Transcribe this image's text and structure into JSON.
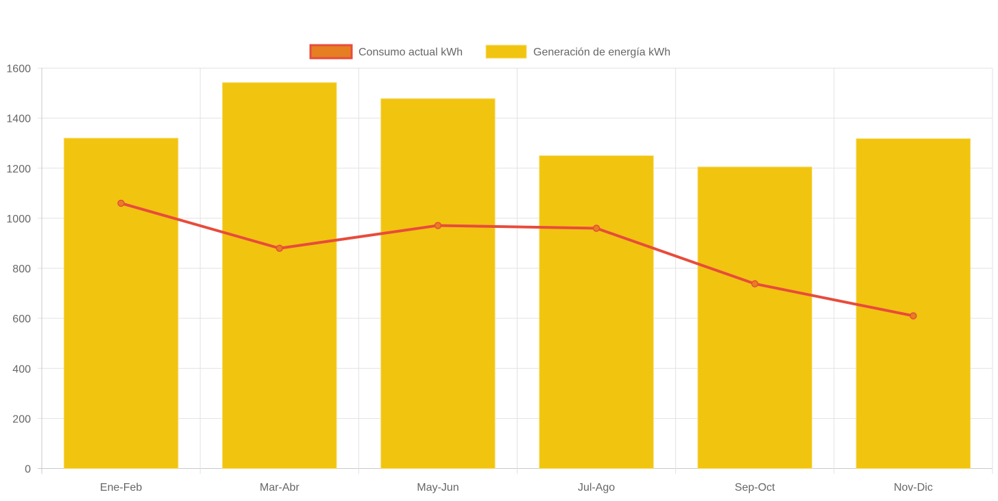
{
  "chart_data": {
    "type": "bar",
    "title": "",
    "xlabel": "",
    "ylabel": "",
    "categories": [
      "Ene-Feb",
      "Mar-Abr",
      "May-Jun",
      "Jul-Ago",
      "Sep-Oct",
      "Nov-Dic"
    ],
    "ylim": [
      0,
      1600
    ],
    "yticks": [
      "0",
      "200",
      "400",
      "600",
      "800",
      "1000",
      "1200",
      "1400",
      "1600"
    ],
    "grid": true,
    "legend_position": "top-center",
    "series": [
      {
        "name": "Consumo actual kWh",
        "type": "line",
        "color": "#e74c3c",
        "fill": "#e67e22",
        "values": [
          1060,
          880,
          971,
          960,
          738,
          610
        ]
      },
      {
        "name": "Generación de energía kWh",
        "type": "bar",
        "color": "#f1c40f",
        "values": [
          1320,
          1542,
          1478,
          1250,
          1205,
          1318
        ]
      }
    ]
  }
}
